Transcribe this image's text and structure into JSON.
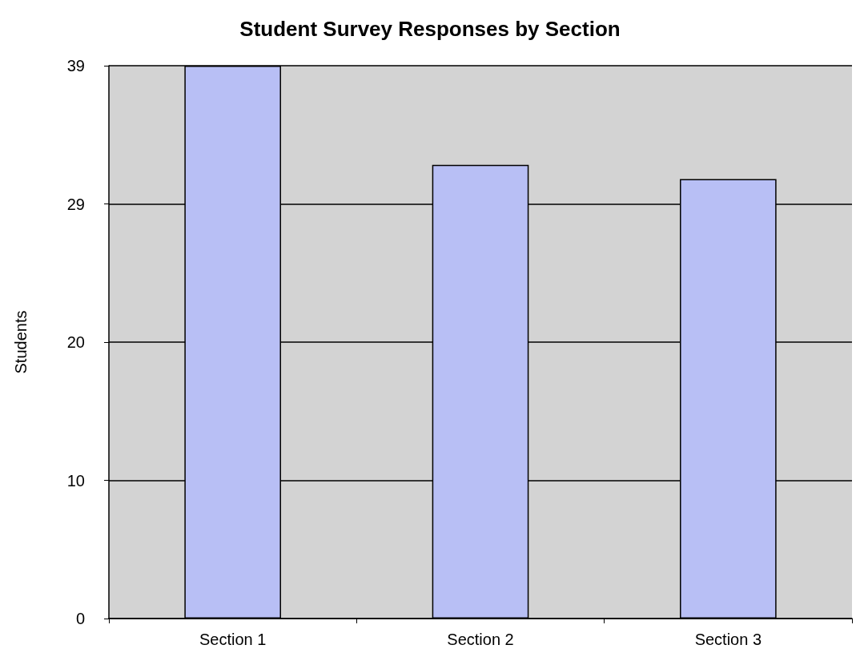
{
  "chart_data": {
    "type": "bar",
    "title": "Student Survey Responses by Section",
    "ylabel": "Students",
    "categories": [
      "Section 1",
      "Section 2",
      "Section 3"
    ],
    "values": [
      39,
      32,
      31
    ],
    "color": "#b8bff5",
    "ylim": [
      0,
      39
    ],
    "yticks": [
      0,
      {
        "value": 9.75,
        "label": "10"
      },
      {
        "value": 19.5,
        "label": "20"
      },
      {
        "value": 29.25,
        "label": "29"
      },
      39
    ],
    "grid": "y"
  }
}
